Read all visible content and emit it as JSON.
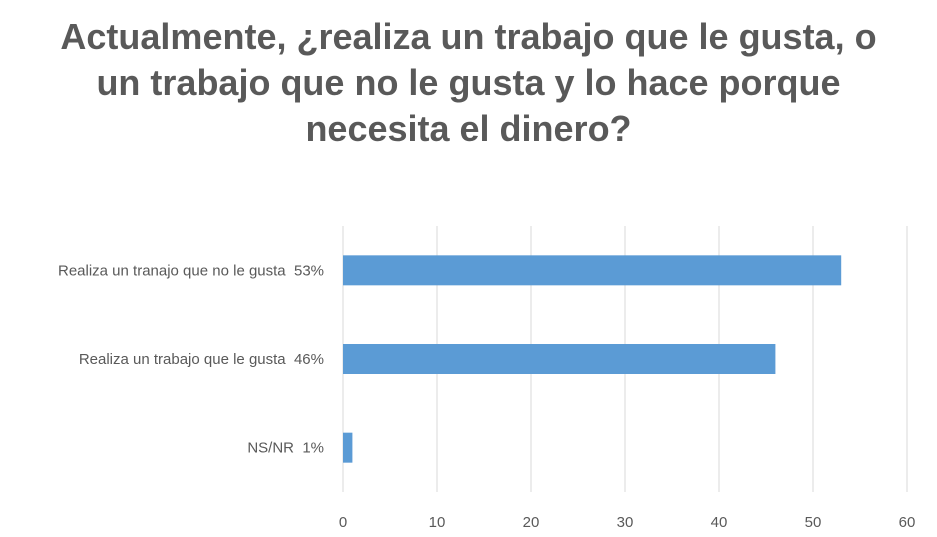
{
  "chart_data": {
    "type": "bar",
    "orientation": "horizontal",
    "title": "Actualmente, ¿realiza un trabajo que le gusta, o un trabajo que no le gusta y lo hace porque necesita el dinero?",
    "categories": [
      "Realiza un tranajo que no le gusta  53%",
      "Realiza un trabajo que le gusta  46%",
      "NS/NR  1%"
    ],
    "values": [
      53,
      46,
      1
    ],
    "xlim": [
      0,
      60
    ],
    "xticks": [
      0,
      10,
      20,
      30,
      40,
      50,
      60
    ],
    "grid": true,
    "bar_color": "#5B9BD5",
    "xlabel": "",
    "ylabel": ""
  }
}
